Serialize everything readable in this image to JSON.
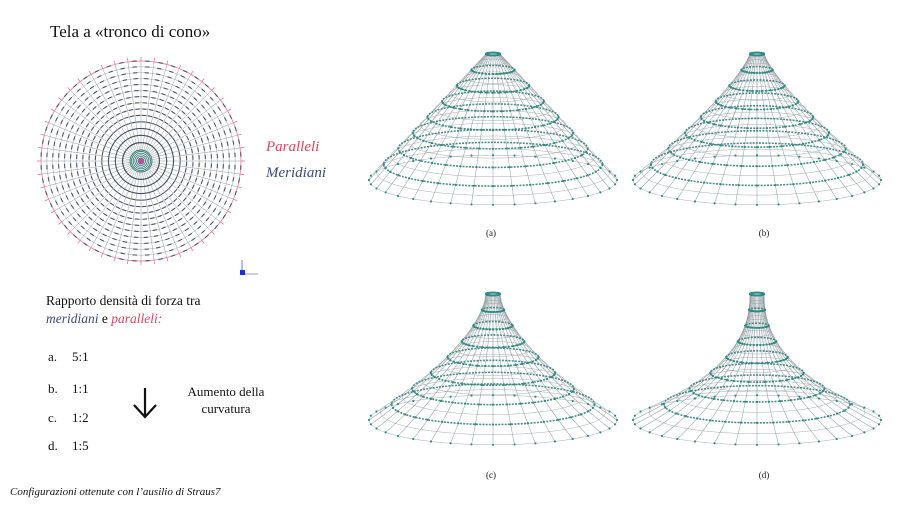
{
  "title": "Tela a «tronco di cono»",
  "legend": {
    "paralleli": "Paralleli",
    "meridiani": "Meridiani",
    "paralleli_color": "#d9455a",
    "meridiani_color": "#3b4a7a"
  },
  "ratio": {
    "heading_pre": "Rapporto densità di forza tra",
    "meridiani": "meridiani",
    "conj": " e ",
    "paralleli": "paralleli",
    "colon": ":",
    "options": [
      {
        "key": "a.",
        "value": "5:1"
      },
      {
        "key": "b.",
        "value": "1:1"
      },
      {
        "key": "c.",
        "value": "1:2"
      },
      {
        "key": "d.",
        "value": "1:5"
      }
    ]
  },
  "curvature_label": "Aumento della curvatura",
  "panels": [
    {
      "label": "(a)",
      "top_ratio": 0.0,
      "neck_power": 1.0
    },
    {
      "label": "(b)",
      "top_ratio": 0.0,
      "neck_power": 1.25
    },
    {
      "label": "(c)",
      "top_ratio": 0.0,
      "neck_power": 1.6
    },
    {
      "label": "(d)",
      "top_ratio": 0.0,
      "neck_power": 2.3
    }
  ],
  "caption": "Configurazioni ottenute con l’ausilio di Straus7",
  "colors": {
    "mesh": "#8f9aa0",
    "node": "#2e8b84",
    "ring": "#3a7f7a",
    "accent_center": "#c04ba0"
  }
}
